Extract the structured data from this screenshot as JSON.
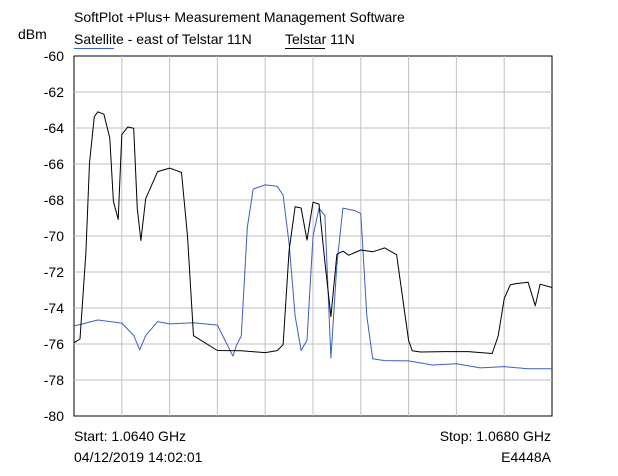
{
  "header": {
    "title": "SoftPlot +Plus+ Measurement Management Software",
    "y_unit": "dBm"
  },
  "footer": {
    "start": "Start: 1.0640 GHz",
    "stop": "Stop: 1.0680 GHz",
    "datetime": "04/12/2019 14:02:01",
    "model": "E4448A"
  },
  "chart_data": {
    "type": "line",
    "title": "SoftPlot +Plus+ Measurement Management Software",
    "ylabel": "dBm",
    "xlabel": "",
    "xlim": [
      1.064,
      1.068
    ],
    "ylim": [
      -80,
      -60
    ],
    "yticks": [
      "-60",
      "-62",
      "-64",
      "-66",
      "-68",
      "-70",
      "-72",
      "-74",
      "-76",
      "-78",
      "-80"
    ],
    "grid": true,
    "legend": "top-left",
    "series": [
      {
        "name": "Satellite - east of Telstar 11N",
        "color": "#3b5fc4",
        "x": [
          1.064,
          1.0642,
          1.0644,
          1.0645,
          1.06455,
          1.0646,
          1.0647,
          1.0648,
          1.065,
          1.0652,
          1.0653,
          1.06533,
          1.06536,
          1.0654,
          1.06545,
          1.0655,
          1.0656,
          1.0657,
          1.06575,
          1.0658,
          1.06585,
          1.0659,
          1.06595,
          1.066,
          1.06605,
          1.0661,
          1.06615,
          1.0662,
          1.06625,
          1.0663,
          1.06635,
          1.0664,
          1.06645,
          1.0665,
          1.0666,
          1.0668,
          1.067,
          1.0672,
          1.0674,
          1.0676,
          1.0678,
          1.068
        ],
        "y": [
          -75.0,
          -74.7,
          -74.9,
          -75.6,
          -76.4,
          -75.6,
          -74.8,
          -74.9,
          -74.8,
          -74.9,
          -76.2,
          -76.6,
          -76.0,
          -75.5,
          -69.5,
          -67.4,
          -67.2,
          -67.3,
          -67.8,
          -70.5,
          -74.5,
          -76.4,
          -75.8,
          -70.0,
          -68.4,
          -68.8,
          -76.7,
          -71.5,
          -68.4,
          -68.5,
          -68.6,
          -68.8,
          -74.5,
          -76.9,
          -77.0,
          -77.0,
          -77.2,
          -77.1,
          -77.3,
          -77.2,
          -77.3,
          -77.3
        ]
      },
      {
        "name": "Telstar 11N",
        "color": "#000000",
        "x": [
          1.064,
          1.06405,
          1.0641,
          1.06413,
          1.06417,
          1.0642,
          1.06425,
          1.0643,
          1.06433,
          1.06437,
          1.0644,
          1.06445,
          1.0645,
          1.06453,
          1.06456,
          1.0646,
          1.0647,
          1.0648,
          1.06485,
          1.0649,
          1.06495,
          1.065,
          1.0652,
          1.0654,
          1.0656,
          1.0657,
          1.06575,
          1.0658,
          1.06585,
          1.0659,
          1.06595,
          1.066,
          1.06605,
          1.0661,
          1.06615,
          1.0662,
          1.06625,
          1.0663,
          1.0664,
          1.0665,
          1.0666,
          1.0667,
          1.0668,
          1.06683,
          1.0669,
          1.0671,
          1.0673,
          1.0675,
          1.06755,
          1.0676,
          1.06765,
          1.0677,
          1.0678,
          1.06786,
          1.0679,
          1.068
        ],
        "y": [
          -76.0,
          -75.8,
          -71.0,
          -66.0,
          -63.4,
          -63.1,
          -63.2,
          -64.5,
          -68.0,
          -69.0,
          -64.3,
          -63.9,
          -64.0,
          -68.5,
          -70.3,
          -68.0,
          -66.5,
          -66.3,
          -66.4,
          -66.5,
          -70.0,
          -75.5,
          -76.3,
          -76.3,
          -76.4,
          -76.3,
          -76.0,
          -70.8,
          -68.4,
          -68.5,
          -70.3,
          -68.2,
          -68.3,
          -71.5,
          -74.5,
          -71.0,
          -70.8,
          -71.0,
          -70.7,
          -70.8,
          -70.6,
          -71.0,
          -75.8,
          -76.4,
          -76.5,
          -76.5,
          -76.5,
          -76.6,
          -75.6,
          -73.5,
          -72.7,
          -72.6,
          -72.5,
          -73.8,
          -72.6,
          -72.8
        ]
      }
    ]
  }
}
